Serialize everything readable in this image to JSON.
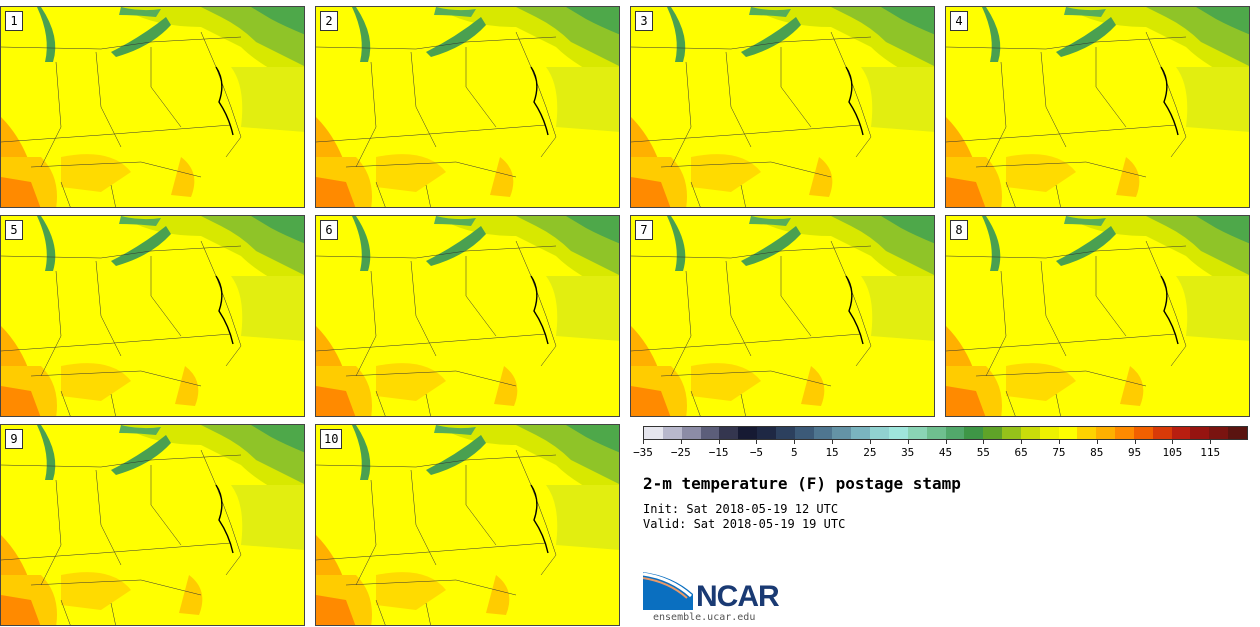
{
  "panels": [
    {
      "label": "1"
    },
    {
      "label": "2"
    },
    {
      "label": "3"
    },
    {
      "label": "4"
    },
    {
      "label": "5"
    },
    {
      "label": "6"
    },
    {
      "label": "7"
    },
    {
      "label": "8"
    },
    {
      "label": "9"
    },
    {
      "label": "10"
    }
  ],
  "colorbar": {
    "colors": [
      "#e6e6ee",
      "#b8b8cc",
      "#8c8ca6",
      "#5c5e7a",
      "#34364f",
      "#161a33",
      "#1e2844",
      "#2c405e",
      "#3c5a78",
      "#4f7690",
      "#6493a6",
      "#7ab4bf",
      "#91d2d0",
      "#9fe6dc",
      "#8ad4b5",
      "#6fbf8f",
      "#52a86b",
      "#3e9646",
      "#5fa328",
      "#95c21a",
      "#c9dc0a",
      "#eef200",
      "#ffff00",
      "#ffd200",
      "#ffb000",
      "#ff8a00",
      "#f26000",
      "#d83a08",
      "#b81e10",
      "#961410",
      "#7a1410",
      "#5a1410"
    ],
    "tick_labels": [
      "−35",
      "−25",
      "−15",
      "−5",
      "5",
      "15",
      "25",
      "35",
      "45",
      "55",
      "65",
      "75",
      "85",
      "95",
      "105",
      "115"
    ]
  },
  "title": "2-m temperature (F) postage stamp",
  "init": "Init: Sat 2018-05-19 12 UTC",
  "valid": "Valid: Sat 2018-05-19 19 UTC",
  "logo_text": "NCAR",
  "url": "ensemble.ucar.edu"
}
